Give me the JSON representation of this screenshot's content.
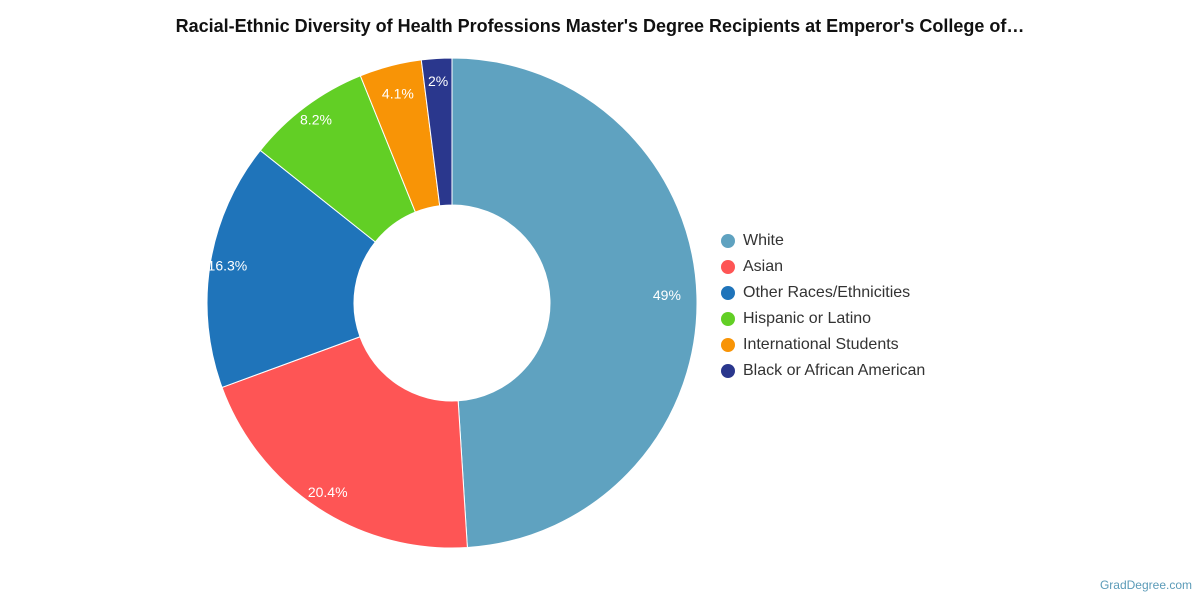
{
  "chart_data": {
    "type": "pie",
    "variant": "donut",
    "title": "Racial-Ethnic Diversity of Health Professions Master's Degree Recipients at Emperor's College of…",
    "legend_position": "right",
    "slices": [
      {
        "name": "White",
        "value": 49,
        "label": "49%",
        "color": "#5fa2c0"
      },
      {
        "name": "Asian",
        "value": 20.4,
        "label": "20.4%",
        "color": "#fe5555"
      },
      {
        "name": "Other Races/Ethnicities",
        "value": 16.3,
        "label": "16.3%",
        "color": "#1f74ba"
      },
      {
        "name": "Hispanic or Latino",
        "value": 8.2,
        "label": "8.2%",
        "color": "#62cf25"
      },
      {
        "name": "International Students",
        "value": 4.1,
        "label": "4.1%",
        "color": "#f89406"
      },
      {
        "name": "Black or African American",
        "value": 2,
        "label": "2%",
        "color": "#2a378d"
      }
    ]
  },
  "credit": "GradDegree.com"
}
